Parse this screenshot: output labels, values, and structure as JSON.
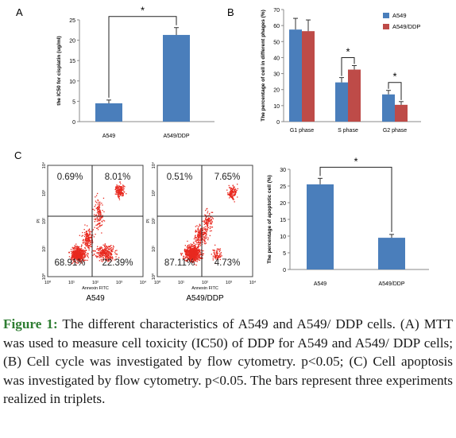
{
  "chart_data": [
    {
      "panel": "A",
      "type": "bar",
      "categories": [
        "A549",
        "A549/DDP"
      ],
      "values": [
        4.5,
        21.3
      ],
      "errors": [
        0.8,
        1.8
      ],
      "ylabel": "the IC50 for cisplatin (ug/ml)",
      "ylim": [
        0,
        25
      ],
      "yticks": [
        "0",
        "5",
        "10",
        "15",
        "20",
        "25"
      ],
      "significance": "*",
      "color": "#4a7ebb"
    },
    {
      "panel": "B",
      "type": "bar",
      "categories": [
        "G1 phase",
        "S phase",
        "G2 phase"
      ],
      "series": [
        {
          "name": "A549",
          "values": [
            57.5,
            24.5,
            17.0
          ],
          "errors": [
            7.0,
            3.0,
            2.5
          ],
          "color": "#4a7ebb"
        },
        {
          "name": "A549/DDP",
          "values": [
            56.5,
            32.5,
            10.5
          ],
          "errors": [
            7.0,
            2.5,
            2.0
          ],
          "color": "#be4b48"
        }
      ],
      "ylabel": "The percentage of cell in different phages (%)",
      "ylim": [
        0,
        70
      ],
      "yticks": [
        "0",
        "10",
        "20",
        "30",
        "40",
        "50",
        "60",
        "70"
      ],
      "significance": [
        "*",
        "*"
      ],
      "legend_position": "top-right"
    },
    {
      "panel": "C",
      "type": "scatter",
      "title": "A549",
      "xlabel": "Annexin FITC",
      "ylabel": "PI",
      "quadrants": [
        "0.69%",
        "8.01%",
        "68.91%",
        "22.39%"
      ],
      "ticks": [
        "10⁰",
        "10¹",
        "10²",
        "10³",
        "10⁴"
      ],
      "color": "#e8281f"
    },
    {
      "panel": "C",
      "type": "scatter",
      "title": "A549/DDP",
      "xlabel": "Annexin FITC",
      "ylabel": "PI",
      "quadrants": [
        "0.51%",
        "7.65%",
        "87.11%",
        "4.73%"
      ],
      "ticks": [
        "10⁰",
        "10¹",
        "10²",
        "10³",
        "10⁴"
      ],
      "color": "#e8281f"
    },
    {
      "panel": "C",
      "type": "bar",
      "categories": [
        "A549",
        "A549/DDP"
      ],
      "values": [
        25.5,
        9.5
      ],
      "errors": [
        1.8,
        1.0
      ],
      "ylabel": "The percentage of apoptotic cell (%)",
      "ylim": [
        0,
        30
      ],
      "yticks": [
        "0",
        "5",
        "10",
        "15",
        "20",
        "25",
        "30"
      ],
      "significance": "*",
      "color": "#4a7ebb"
    }
  ],
  "caption": {
    "label": "Figure 1:",
    "text": " The different characteristics of A549 and A549/ DDP cells. (A) MTT was used to measure cell toxicity (IC50) of DDP for A549 and A549/ DDP cells;(B) Cell cycle was investigated by flow cytometry. p<0.05; (C) Cell apoptosis was investigated by flow cytometry. p<0.05. The bars represent three experiments realized in triplets."
  }
}
